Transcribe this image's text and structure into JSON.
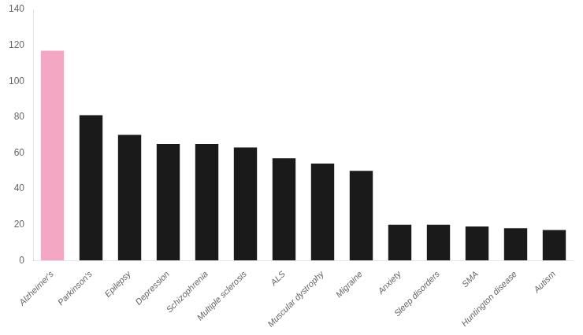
{
  "chart_data": {
    "type": "bar",
    "categories": [
      "Alzheimer's",
      "Parkinson's",
      "Epilepsy",
      "Depression",
      "Schizophrenia",
      "Multiple sclerosis",
      "ALS",
      "Muscular dystrophy",
      "Migraine",
      "Anxiety",
      "Sleep disorders",
      "SMA",
      "Huntington disease",
      "Autism"
    ],
    "values": [
      117,
      81,
      70,
      65,
      65,
      63,
      57,
      54,
      50,
      20,
      20,
      19,
      18,
      17
    ],
    "colors": [
      "#f4a7c3",
      "#1a1a1a",
      "#1a1a1a",
      "#1a1a1a",
      "#1a1a1a",
      "#1a1a1a",
      "#1a1a1a",
      "#1a1a1a",
      "#1a1a1a",
      "#1a1a1a",
      "#1a1a1a",
      "#1a1a1a",
      "#1a1a1a",
      "#1a1a1a"
    ],
    "ylim": [
      0,
      140
    ],
    "yticks": [
      0,
      20,
      40,
      60,
      80,
      100,
      120,
      140
    ],
    "grid": false
  }
}
